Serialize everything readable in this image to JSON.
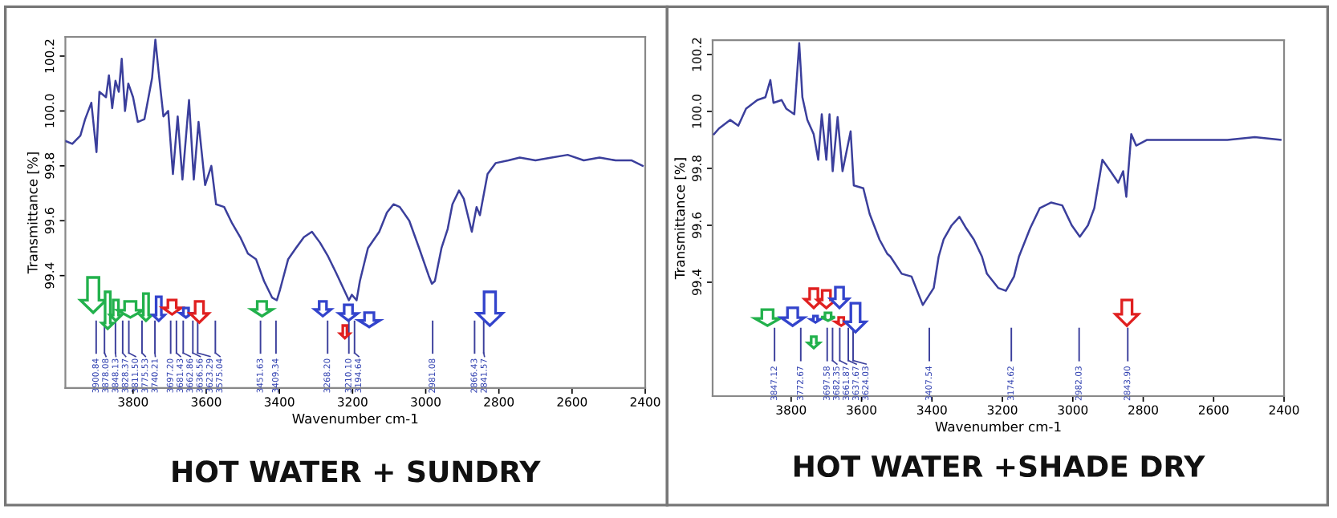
{
  "chart_data": [
    {
      "type": "line",
      "title": "HOT WATER + SUNDRY",
      "xlabel": "Wavenumber cm-1",
      "ylabel": "Transmittance [%]",
      "xlim": [
        3985,
        2400
      ],
      "ylim": [
        98.99,
        100.27
      ],
      "xticks": [
        3800,
        3600,
        3400,
        3200,
        3000,
        2800,
        2600,
        2400
      ],
      "yticks": [
        99.4,
        99.6,
        99.8,
        {
          "value": 100.0,
          "label": "100.0"
        },
        100.2
      ],
      "marker": "none",
      "line_style": "solid",
      "x": [
        3984,
        3966,
        3944,
        3931,
        3914,
        3900,
        3892,
        3874,
        3866,
        3857,
        3848,
        3839,
        3831,
        3822,
        3813,
        3800,
        3787,
        3769,
        3748,
        3739,
        3730,
        3717,
        3704,
        3691,
        3678,
        3665,
        3647,
        3634,
        3621,
        3603,
        3586,
        3573,
        3551,
        3529,
        3507,
        3486,
        3464,
        3442,
        3420,
        3407,
        3398,
        3376,
        3355,
        3333,
        3311,
        3289,
        3267,
        3245,
        3224,
        3210,
        3202,
        3189,
        3180,
        3158,
        3127,
        3106,
        3088,
        3071,
        3045,
        3018,
        2992,
        2983,
        2975,
        2957,
        2940,
        2927,
        2909,
        2896,
        2874,
        2861,
        2852,
        2831,
        2809,
        2774,
        2743,
        2700,
        2656,
        2612,
        2568,
        2525,
        2481,
        2438,
        2407
      ],
      "series": [
        {
          "color": "#3b3f9c",
          "values": [
            99.89,
            99.88,
            99.91,
            99.97,
            100.03,
            99.85,
            100.07,
            100.05,
            100.13,
            100.01,
            100.11,
            100.07,
            100.19,
            100.0,
            100.1,
            100.05,
            99.96,
            99.97,
            100.12,
            100.26,
            100.14,
            99.98,
            100.0,
            99.77,
            99.98,
            99.75,
            100.04,
            99.75,
            99.96,
            99.73,
            99.8,
            99.66,
            99.65,
            99.59,
            99.54,
            99.48,
            99.46,
            99.38,
            99.32,
            99.31,
            99.35,
            99.46,
            99.5,
            99.54,
            99.56,
            99.52,
            99.47,
            99.41,
            99.35,
            99.31,
            99.33,
            99.31,
            99.38,
            99.5,
            99.56,
            99.63,
            99.66,
            99.65,
            99.6,
            99.5,
            99.4,
            99.37,
            99.38,
            99.5,
            99.57,
            99.66,
            99.71,
            99.68,
            99.56,
            99.65,
            99.62,
            99.77,
            99.81,
            99.82,
            99.83,
            99.82,
            99.83,
            99.84,
            99.82,
            99.83,
            99.82,
            99.82,
            99.8
          ]
        }
      ],
      "ref_lines": [
        {
          "axis": "x",
          "value": 3900.84,
          "label": "3900.84"
        },
        {
          "axis": "x",
          "value": 3878.08,
          "label": "3878.08"
        },
        {
          "axis": "x",
          "value": 3848.13,
          "label": "3848.13"
        },
        {
          "axis": "x",
          "value": 3828.37,
          "label": "3828.37"
        },
        {
          "axis": "x",
          "value": 3811.5,
          "label": "3811.50"
        },
        {
          "axis": "x",
          "value": 3775.53,
          "label": "3775.53"
        },
        {
          "axis": "x",
          "value": 3740.21,
          "label": "3740.21"
        },
        {
          "axis": "x",
          "value": 3697.2,
          "label": "3697.20"
        },
        {
          "axis": "x",
          "value": 3681.43,
          "label": "3681.43"
        },
        {
          "axis": "x",
          "value": 3662.86,
          "label": "3662.86"
        },
        {
          "axis": "x",
          "value": 3636.56,
          "label": "3636.56"
        },
        {
          "axis": "x",
          "value": 3623.29,
          "label": "3623.29"
        },
        {
          "axis": "x",
          "value": 3575.04,
          "label": "3575.04"
        },
        {
          "axis": "x",
          "value": 3451.63,
          "label": "3451.63"
        },
        {
          "axis": "x",
          "value": 3409.34,
          "label": "3409.34"
        },
        {
          "axis": "x",
          "value": 3268.2,
          "label": "3268.20"
        },
        {
          "axis": "x",
          "value": 3210.1,
          "label": "3210.10"
        },
        {
          "axis": "x",
          "value": 3194.64,
          "label": "3194.64"
        },
        {
          "axis": "x",
          "value": 2981.08,
          "label": "2981.08"
        },
        {
          "axis": "x",
          "value": 2866.43,
          "label": "2866.43"
        },
        {
          "axis": "x",
          "value": 2841.57,
          "label": "2841.57"
        }
      ]
    },
    {
      "type": "line",
      "title": "HOT WATER +SHADE DRY",
      "xlabel": "Wavenumber cm-1",
      "ylabel": "Transmittance [%]",
      "xlim": [
        4023,
        2400
      ],
      "ylim": [
        99.0,
        100.25
      ],
      "xticks": [
        3800,
        3600,
        3400,
        3200,
        3000,
        2800,
        2600,
        2400
      ],
      "yticks": [
        99.4,
        99.6,
        99.8,
        {
          "value": 100.0,
          "label": "100.0"
        },
        100.2
      ],
      "marker": "none",
      "line_style": "solid",
      "x": [
        4019,
        4005,
        3973,
        3950,
        3928,
        3896,
        3873,
        3859,
        3850,
        3827,
        3814,
        3791,
        3777,
        3768,
        3754,
        3736,
        3723,
        3713,
        3700,
        3691,
        3682,
        3668,
        3654,
        3631,
        3622,
        3595,
        3577,
        3549,
        3527,
        3518,
        3486,
        3458,
        3426,
        3395,
        3381,
        3367,
        3344,
        3322,
        3303,
        3281,
        3258,
        3244,
        3212,
        3190,
        3167,
        3153,
        3121,
        3094,
        3062,
        3030,
        3003,
        2980,
        2957,
        2939,
        2916,
        2893,
        2871,
        2857,
        2848,
        2834,
        2820,
        2789,
        2711,
        2638,
        2561,
        2483,
        2410
      ],
      "series": [
        {
          "color": "#3b3f9c",
          "values": [
            99.92,
            99.94,
            99.97,
            99.95,
            100.01,
            100.04,
            100.05,
            100.11,
            100.03,
            100.04,
            100.01,
            99.99,
            100.24,
            100.05,
            99.97,
            99.92,
            99.83,
            99.99,
            99.83,
            99.99,
            99.79,
            99.98,
            99.79,
            99.93,
            99.74,
            99.73,
            99.64,
            99.55,
            99.5,
            99.49,
            99.43,
            99.42,
            99.32,
            99.38,
            99.49,
            99.55,
            99.6,
            99.63,
            99.59,
            99.55,
            99.49,
            99.43,
            99.38,
            99.37,
            99.42,
            99.49,
            99.59,
            99.66,
            99.68,
            99.67,
            99.6,
            99.56,
            99.6,
            99.66,
            99.83,
            99.79,
            99.75,
            99.79,
            99.7,
            99.92,
            99.88,
            99.9,
            99.9,
            99.9,
            99.9,
            99.91,
            99.9
          ]
        }
      ],
      "ref_lines": [
        {
          "axis": "x",
          "value": 3847.12,
          "label": "3847.12"
        },
        {
          "axis": "x",
          "value": 3772.67,
          "label": "3772.67"
        },
        {
          "axis": "x",
          "value": 3697.58,
          "label": "3697.58"
        },
        {
          "axis": "x",
          "value": 3682.35,
          "label": "3682.35"
        },
        {
          "axis": "x",
          "value": 3661.87,
          "label": "3661.87"
        },
        {
          "axis": "x",
          "value": 3637.67,
          "label": "3637.67"
        },
        {
          "axis": "x",
          "value": 3624.03,
          "label": "3624.03"
        },
        {
          "axis": "x",
          "value": 3407.54,
          "label": "3407.54"
        },
        {
          "axis": "x",
          "value": 3174.62,
          "label": "3174.62"
        },
        {
          "axis": "x",
          "value": 2982.03,
          "label": "2982.03"
        },
        {
          "axis": "x",
          "value": 2843.9,
          "label": "2843.90"
        }
      ]
    }
  ]
}
